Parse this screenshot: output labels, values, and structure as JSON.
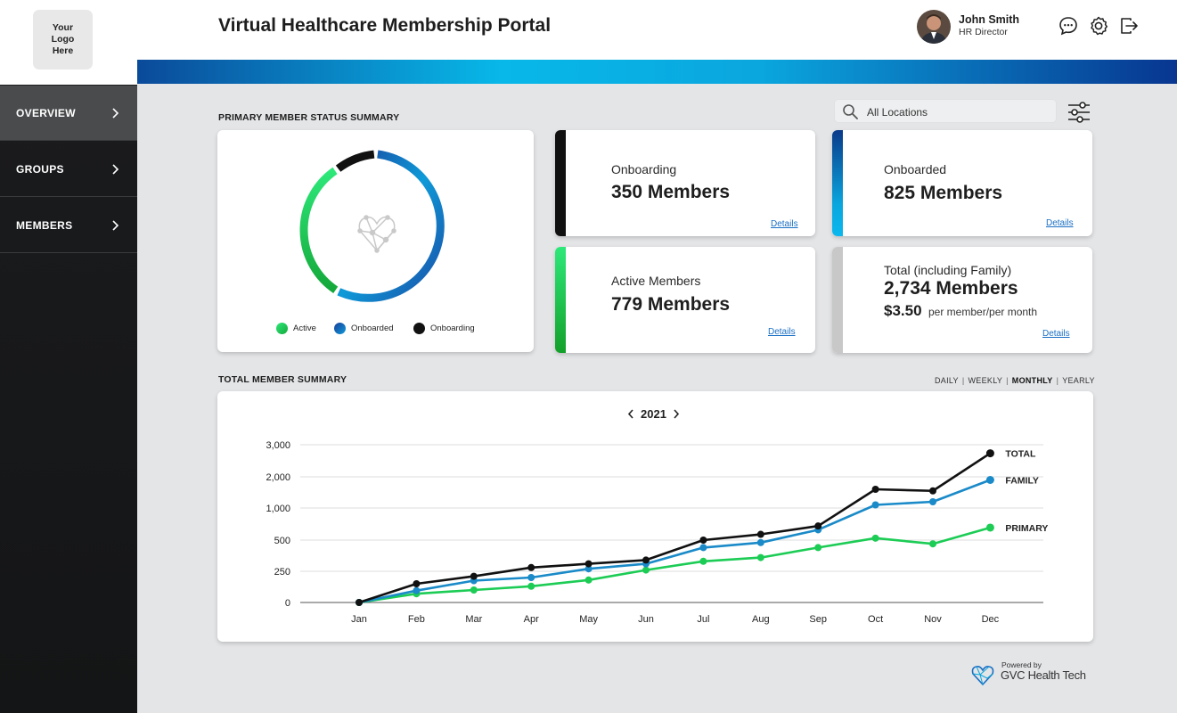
{
  "logo": {
    "text": "Your\nLogo\nHere"
  },
  "nav": [
    {
      "label": "OVERVIEW",
      "active": true
    },
    {
      "label": "GROUPS",
      "active": false
    },
    {
      "label": "MEMBERS",
      "active": false
    }
  ],
  "header": {
    "title": "Virtual Healthcare Membership Portal",
    "user_name": "John Smith",
    "user_role": "HR Director"
  },
  "status_section": {
    "label": "PRIMARY MEMBER STATUS SUMMARY"
  },
  "search": {
    "placeholder": "All Locations"
  },
  "donut": {
    "legend": [
      {
        "label": "Active",
        "color": "#1ccc55"
      },
      {
        "label": "Onboarded",
        "color": "#1a6fc4"
      },
      {
        "label": "Onboarding",
        "color": "#111111"
      }
    ]
  },
  "cards": {
    "onboarding": {
      "label": "Onboarding",
      "value": "350 Members",
      "link": "Details",
      "accent": "#111111"
    },
    "onboarded": {
      "label": "Onboarded",
      "value": "825 Members",
      "link": "Details",
      "accent": "#0aa6de"
    },
    "active": {
      "label": "Active Members",
      "value": "779 Members",
      "link": "Details",
      "accent": "#1ccc55"
    },
    "total": {
      "label": "Total (including Family)",
      "value": "2,734 Members",
      "price": "$3.50",
      "price_unit": "per member/per month",
      "link": "Details",
      "accent": "#c8c8c8"
    }
  },
  "summary_section": {
    "label": "TOTAL MEMBER SUMMARY"
  },
  "periods": [
    {
      "label": "DAILY",
      "active": false
    },
    {
      "label": "WEEKLY",
      "active": false
    },
    {
      "label": "MONTHLY",
      "active": true
    },
    {
      "label": "YEARLY",
      "active": false
    }
  ],
  "year": "2021",
  "chart_data": {
    "type": "line",
    "x": [
      "Jan",
      "Feb",
      "Mar",
      "Apr",
      "May",
      "Jun",
      "Jul",
      "Aug",
      "Sep",
      "Oct",
      "Nov",
      "Dec"
    ],
    "y_ticks": [
      "3,000",
      "2,000",
      "1,000",
      "500",
      "250",
      "0"
    ],
    "series": [
      {
        "name": "TOTAL",
        "color": "#111111",
        "values": [
          0,
          150,
          210,
          280,
          310,
          340,
          500,
          590,
          720,
          1600,
          1550,
          2734
        ]
      },
      {
        "name": "FAMILY",
        "color": "#1a8ac8",
        "values": [
          0,
          95,
          175,
          200,
          270,
          310,
          440,
          480,
          660,
          1100,
          1200,
          1900
        ]
      },
      {
        "name": "PRIMARY",
        "color": "#1ccc55",
        "values": [
          0,
          70,
          100,
          130,
          180,
          260,
          330,
          360,
          440,
          530,
          470,
          695
        ]
      }
    ],
    "grid": true
  },
  "powered": {
    "small": "Powered by",
    "brand": "GVC Health Tech"
  }
}
